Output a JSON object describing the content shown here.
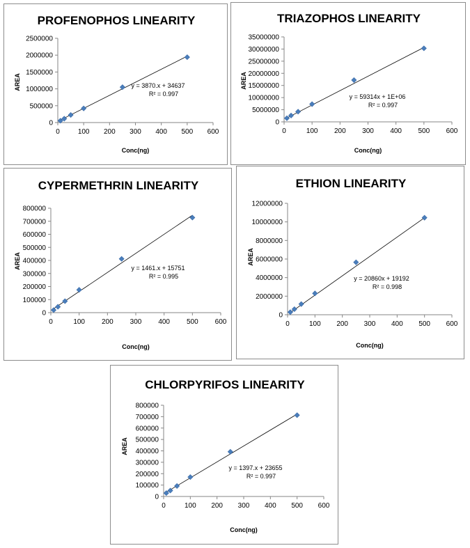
{
  "chart_data": [
    {
      "type": "scatter",
      "title": "PROFENOPHOS LINEARITY",
      "xlabel": "Conc(ng)",
      "ylabel": "AREA",
      "xlim": [
        0,
        600
      ],
      "ylim": [
        0,
        2500000
      ],
      "xticks": [
        "0",
        "100",
        "200",
        "300",
        "400",
        "500",
        "600"
      ],
      "yticks": [
        "0",
        "500000",
        "1000000",
        "1500000",
        "2000000",
        "2500000"
      ],
      "equation": "y = 3870.x + 34637",
      "r2": "R² = 0.997",
      "x": [
        10,
        25,
        50,
        100,
        250,
        500
      ],
      "y": [
        55000,
        115000,
        225000,
        420000,
        1050000,
        1940000
      ],
      "trendline": {
        "slope": 3870,
        "intercept": 34637
      },
      "marker_color": "#4a7ebb"
    },
    {
      "type": "scatter",
      "title": "TRIAZOPHOS LINEARITY",
      "xlabel": "Conc(ng)",
      "ylabel": "AREA",
      "xlim": [
        0,
        600
      ],
      "ylim": [
        0,
        35000000
      ],
      "xticks": [
        "0",
        "100",
        "200",
        "300",
        "400",
        "500",
        "600"
      ],
      "yticks": [
        "0",
        "5000000",
        "10000000",
        "15000000",
        "20000000",
        "25000000",
        "30000000",
        "35000000"
      ],
      "equation": "y = 59314x + 1E+06",
      "r2": "R² = 0.997",
      "x": [
        10,
        25,
        50,
        100,
        250,
        500
      ],
      "y": [
        1500000,
        2600000,
        4200000,
        7300000,
        17200000,
        30300000
      ],
      "trendline": {
        "slope": 59314,
        "intercept": 1000000
      },
      "marker_color": "#4a7ebb"
    },
    {
      "type": "scatter",
      "title": "CYPERMETHRIN LINEARITY",
      "xlabel": "Conc(ng)",
      "ylabel": "AREA",
      "xlim": [
        0,
        600
      ],
      "ylim": [
        0,
        800000
      ],
      "xticks": [
        "0",
        "100",
        "200",
        "300",
        "400",
        "500",
        "600"
      ],
      "yticks": [
        "0",
        "100000",
        "200000",
        "300000",
        "400000",
        "500000",
        "600000",
        "700000",
        "800000"
      ],
      "equation": "y = 1461.x + 15751",
      "r2": "R² = 0.995",
      "x": [
        10,
        25,
        50,
        100,
        250,
        500
      ],
      "y": [
        20000,
        45000,
        88000,
        175000,
        412000,
        728000
      ],
      "trendline": {
        "slope": 1461,
        "intercept": 15751
      },
      "marker_color": "#4a7ebb"
    },
    {
      "type": "scatter",
      "title": "ETHION LINEARITY",
      "xlabel": "Conc(ng)",
      "ylabel": "AREA",
      "xlim": [
        0,
        600
      ],
      "ylim": [
        0,
        12000000
      ],
      "xticks": [
        "0",
        "100",
        "200",
        "300",
        "400",
        "500",
        "600"
      ],
      "yticks": [
        "0",
        "2000000",
        "4000000",
        "6000000",
        "8000000",
        "10000000",
        "12000000"
      ],
      "equation": "y = 20860x + 19192",
      "r2": "R² = 0.998",
      "x": [
        10,
        25,
        50,
        100,
        250,
        500
      ],
      "y": [
        280000,
        600000,
        1150000,
        2300000,
        5650000,
        10450000
      ],
      "trendline": {
        "slope": 20860,
        "intercept": 19192
      },
      "marker_color": "#4a7ebb"
    },
    {
      "type": "scatter",
      "title": "CHLORPYRIFOS LINEARITY",
      "xlabel": "Conc(ng)",
      "ylabel": "AREA",
      "xlim": [
        0,
        600
      ],
      "ylim": [
        0,
        800000
      ],
      "xticks": [
        "0",
        "100",
        "200",
        "300",
        "400",
        "500",
        "600"
      ],
      "yticks": [
        "0",
        "100000",
        "200000",
        "300000",
        "400000",
        "500000",
        "600000",
        "700000",
        "800000"
      ],
      "equation": "y = 1397.x + 23655",
      "r2": "R² = 0.997",
      "x": [
        10,
        25,
        50,
        100,
        250,
        500
      ],
      "y": [
        30000,
        52000,
        92000,
        170000,
        392000,
        713000
      ],
      "trendline": {
        "slope": 1397,
        "intercept": 23655
      },
      "marker_color": "#4a7ebb"
    }
  ]
}
